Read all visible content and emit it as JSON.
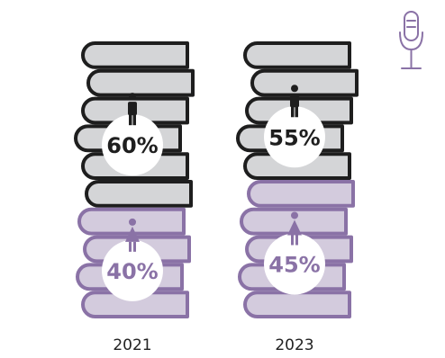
{
  "chart_data": {
    "type": "bar",
    "categories": [
      "2021",
      "2023"
    ],
    "series": [
      {
        "name": "",
        "values": [
          60,
          55
        ]
      },
      {
        "name": "",
        "values": [
          40,
          45
        ]
      }
    ],
    "labels": [
      {
        "top": "60%",
        "bottom": "40%"
      },
      {
        "top": "55%",
        "bottom": "45%"
      }
    ],
    "unit": "%",
    "ylim": [
      0,
      100
    ],
    "grid": false
  },
  "colors": {
    "top_fill": "#d4d5d7",
    "top_stroke": "#1e1e1e",
    "top_text": "#1e1e1e",
    "bottom_fill": "#d3cbdd",
    "bottom_stroke": "#8a72a6",
    "bottom_text": "#8a72a6"
  },
  "icons": {
    "corner": "microphone-icon",
    "top_figure": "man-icon",
    "bottom_figure": "woman-icon"
  }
}
